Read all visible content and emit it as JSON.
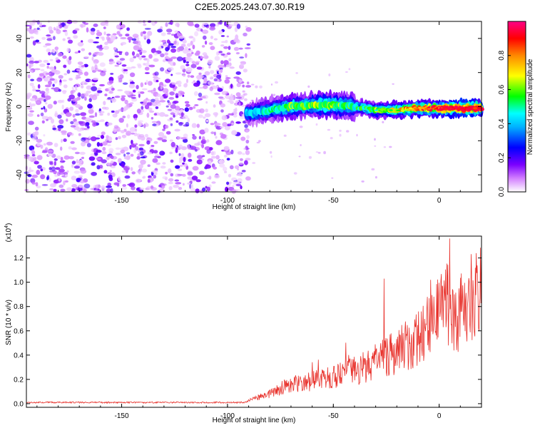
{
  "title": "C2E5.2025.243.07.30.R19",
  "chart_data": [
    {
      "type": "heatmap",
      "name": "spectrogram",
      "xlabel": "Height of straight line (km)",
      "ylabel": "Frequency (Hz)",
      "xlim": [
        -195,
        20
      ],
      "ylim": [
        -50,
        50
      ],
      "xticks": [
        -150,
        -100,
        -50,
        0
      ],
      "yticks": [
        -40,
        -20,
        0,
        20,
        40
      ],
      "colorbar": {
        "label": "Normalized spectral amplitude",
        "range": [
          0,
          1
        ],
        "ticks": [
          0,
          0.2,
          0.4,
          0.6,
          0.8
        ],
        "colormap": [
          "#ffffff",
          "#cc00ff",
          "#0000ff",
          "#00ffff",
          "#00ff00",
          "#ffff00",
          "#ff8800",
          "#ff0000",
          "#ff0080"
        ]
      },
      "noise_region_km": [
        -195,
        -90
      ],
      "signal_track": [
        {
          "x": -90,
          "f": -4,
          "amp": 0.3
        },
        {
          "x": -80,
          "f": -2,
          "amp": 0.35
        },
        {
          "x": -70,
          "f": 0,
          "amp": 0.45
        },
        {
          "x": -60,
          "f": 1,
          "amp": 0.45
        },
        {
          "x": -50,
          "f": 1,
          "amp": 0.45
        },
        {
          "x": -40,
          "f": 0,
          "amp": 0.4
        },
        {
          "x": -30,
          "f": -2,
          "amp": 0.45
        },
        {
          "x": -20,
          "f": -2,
          "amp": 0.55
        },
        {
          "x": -10,
          "f": -1,
          "amp": 0.65
        },
        {
          "x": 0,
          "f": -1,
          "amp": 0.75
        },
        {
          "x": 10,
          "f": -1,
          "amp": 0.85
        },
        {
          "x": 20,
          "f": -1,
          "amp": 0.8
        }
      ]
    },
    {
      "type": "line",
      "name": "snr",
      "xlabel": "Height of straight line (km)",
      "ylabel": "SNR (10 * v/v)",
      "y_scale_label": "(x10",
      "y_scale_exp": "4",
      "y_scale_close": ")",
      "xlim": [
        -195,
        20
      ],
      "ylim": [
        -0.03,
        1.38
      ],
      "xticks": [
        -150,
        -100,
        -50,
        0
      ],
      "yticks": [
        0.0,
        0.2,
        0.4,
        0.6,
        0.8,
        1.0,
        1.2
      ],
      "color": "#e8322c",
      "envelope": [
        {
          "x": -195,
          "y": 0.01
        },
        {
          "x": -92,
          "y": 0.01
        },
        {
          "x": -88,
          "y": 0.04
        },
        {
          "x": -80,
          "y": 0.08
        },
        {
          "x": -72,
          "y": 0.15
        },
        {
          "x": -65,
          "y": 0.17
        },
        {
          "x": -55,
          "y": 0.2
        },
        {
          "x": -45,
          "y": 0.24
        },
        {
          "x": -35,
          "y": 0.3
        },
        {
          "x": -25,
          "y": 0.38
        },
        {
          "x": -15,
          "y": 0.48
        },
        {
          "x": -8,
          "y": 0.55
        },
        {
          "x": -3,
          "y": 0.68
        },
        {
          "x": 3,
          "y": 0.78
        },
        {
          "x": 5,
          "y": 0.88
        },
        {
          "x": 8,
          "y": 0.72
        },
        {
          "x": 12,
          "y": 0.82
        },
        {
          "x": 20,
          "y": 0.92
        }
      ],
      "peaks": [
        {
          "x": 5,
          "y": 1.36
        },
        {
          "x": 17,
          "y": 1.12
        },
        {
          "x": -26,
          "y": 1.03
        },
        {
          "x": -4,
          "y": 1.02
        }
      ]
    }
  ]
}
